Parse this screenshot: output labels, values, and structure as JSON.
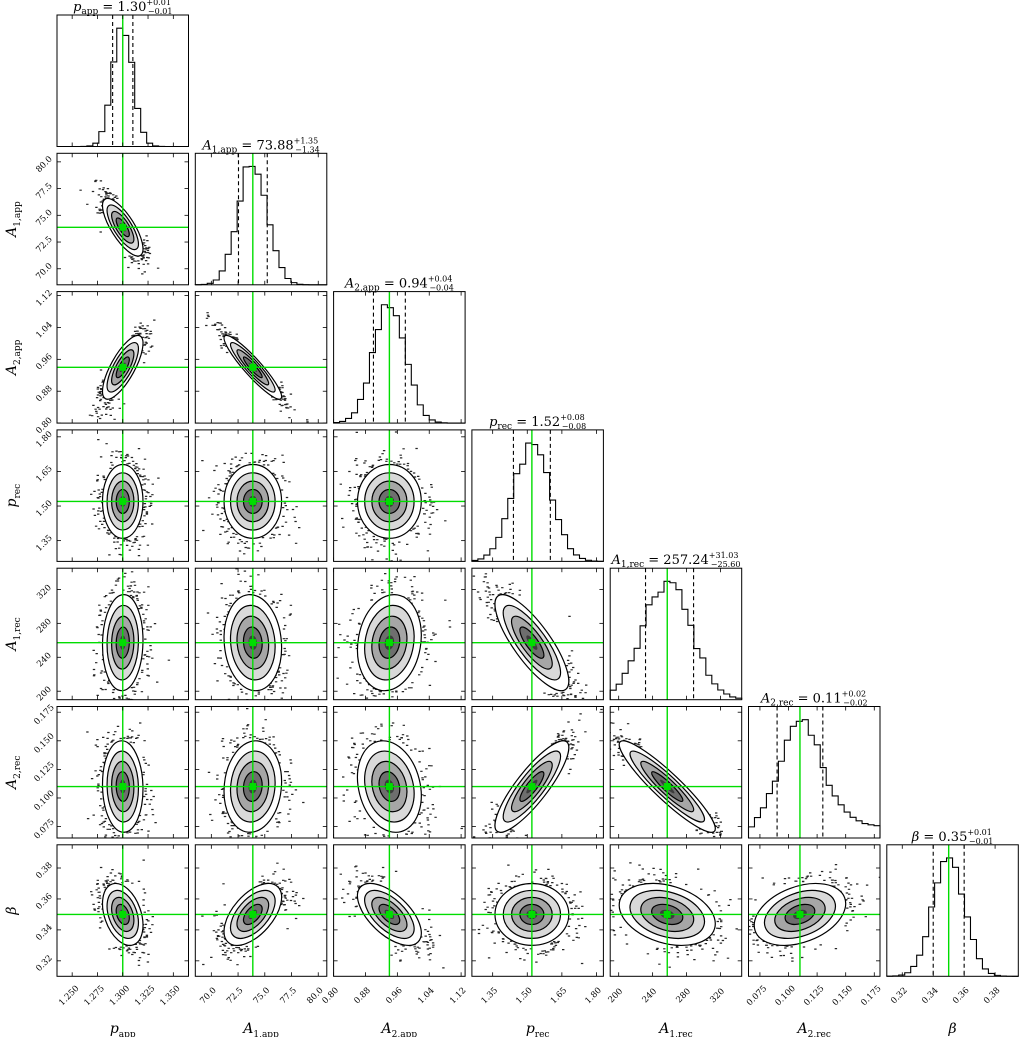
{
  "chart_data": {
    "type": "corner",
    "title": "",
    "truth_color": "#00dd00",
    "parameters": [
      {
        "id": "p_app",
        "axis_label": {
          "base": "p",
          "sub": "app"
        },
        "title": {
          "base": "p",
          "sub": "app",
          "value": "1.30",
          "plus": "+0.01",
          "minus": "−0.01"
        },
        "median": 1.3,
        "err_minus": 0.01,
        "err_plus": 0.01,
        "range": [
          1.235,
          1.365
        ],
        "ticks": [
          1.25,
          1.275,
          1.3,
          1.325,
          1.35
        ],
        "tick_labels": [
          "1.250",
          "1.275",
          "1.300",
          "1.325",
          "1.350"
        ]
      },
      {
        "id": "A1_app",
        "axis_label": {
          "base": "A",
          "sub": "1,app"
        },
        "title": {
          "base": "A",
          "sub": "1,app",
          "value": "73.88",
          "plus": "+1.35",
          "minus": "−1.34"
        },
        "median": 73.88,
        "err_minus": 1.34,
        "err_plus": 1.35,
        "range": [
          68.5,
          80.8
        ],
        "ticks": [
          70,
          72.5,
          75,
          77.5,
          80
        ],
        "tick_labels": [
          "70.0",
          "72.5",
          "75.0",
          "77.5",
          "80.0"
        ]
      },
      {
        "id": "A2_app",
        "axis_label": {
          "base": "A",
          "sub": "2,app"
        },
        "title": {
          "base": "A",
          "sub": "2,app",
          "value": "0.94",
          "plus": "+0.04",
          "minus": "−0.04"
        },
        "median": 0.94,
        "err_minus": 0.04,
        "err_plus": 0.04,
        "range": [
          0.8,
          1.13
        ],
        "ticks": [
          0.8,
          0.88,
          0.96,
          1.04,
          1.12
        ],
        "tick_labels": [
          "0.80",
          "0.88",
          "0.96",
          "1.04",
          "1.12"
        ]
      },
      {
        "id": "p_rec",
        "axis_label": {
          "base": "p",
          "sub": "rec"
        },
        "title": {
          "base": "p",
          "sub": "rec",
          "value": "1.52",
          "plus": "+0.08",
          "minus": "−0.08"
        },
        "median": 1.52,
        "err_minus": 0.08,
        "err_plus": 0.08,
        "range": [
          1.26,
          1.83
        ],
        "ticks": [
          1.35,
          1.5,
          1.65,
          1.8
        ],
        "tick_labels": [
          "1.35",
          "1.50",
          "1.65",
          "1.80"
        ]
      },
      {
        "id": "A1_rec",
        "axis_label": {
          "base": "A",
          "sub": "1,rec"
        },
        "title": {
          "base": "A",
          "sub": "1,rec",
          "value": "257.24",
          "plus": "+31.03",
          "minus": "−25.60"
        },
        "median": 257.24,
        "err_minus": 25.6,
        "err_plus": 31.03,
        "range": [
          190,
          345
        ],
        "ticks": [
          200,
          240,
          280,
          320
        ],
        "tick_labels": [
          "200",
          "240",
          "280",
          "320"
        ]
      },
      {
        "id": "A2_rec",
        "axis_label": {
          "base": "A",
          "sub": "2,rec"
        },
        "title": {
          "base": "A",
          "sub": "2,rec",
          "value": "0.11",
          "plus": "+0.02",
          "minus": "−0.02"
        },
        "median": 0.11,
        "err_minus": 0.02,
        "err_plus": 0.02,
        "range": [
          0.065,
          0.18
        ],
        "ticks": [
          0.075,
          0.1,
          0.125,
          0.15,
          0.175
        ],
        "tick_labels": [
          "0.075",
          "0.100",
          "0.125",
          "0.150",
          "0.175"
        ]
      },
      {
        "id": "beta",
        "axis_label": {
          "base": "β",
          "sub": ""
        },
        "title": {
          "base": "β",
          "sub": "",
          "value": "0.35",
          "plus": "+0.01",
          "minus": "−0.01"
        },
        "median": 0.35,
        "err_minus": 0.01,
        "err_plus": 0.01,
        "range": [
          0.31,
          0.395
        ],
        "ticks": [
          0.32,
          0.34,
          0.36,
          0.38
        ],
        "tick_labels": [
          "0.32",
          "0.34",
          "0.36",
          "0.38"
        ]
      }
    ],
    "correlations": {
      "1,0": -0.75,
      "2,0": 0.75,
      "2,1": -0.92,
      "3,0": 0.0,
      "3,1": 0.0,
      "3,2": 0.0,
      "4,0": 0.05,
      "4,1": -0.1,
      "4,2": 0.15,
      "4,3": -0.8,
      "5,0": -0.05,
      "5,1": 0.1,
      "5,2": -0.2,
      "5,3": 0.85,
      "5,4": -0.92,
      "6,0": -0.35,
      "6,1": 0.55,
      "6,2": -0.6,
      "6,3": 0.0,
      "6,4": -0.3,
      "6,5": 0.35
    },
    "grid": false,
    "contour_levels": 4,
    "quantile_lines": "dashed"
  }
}
